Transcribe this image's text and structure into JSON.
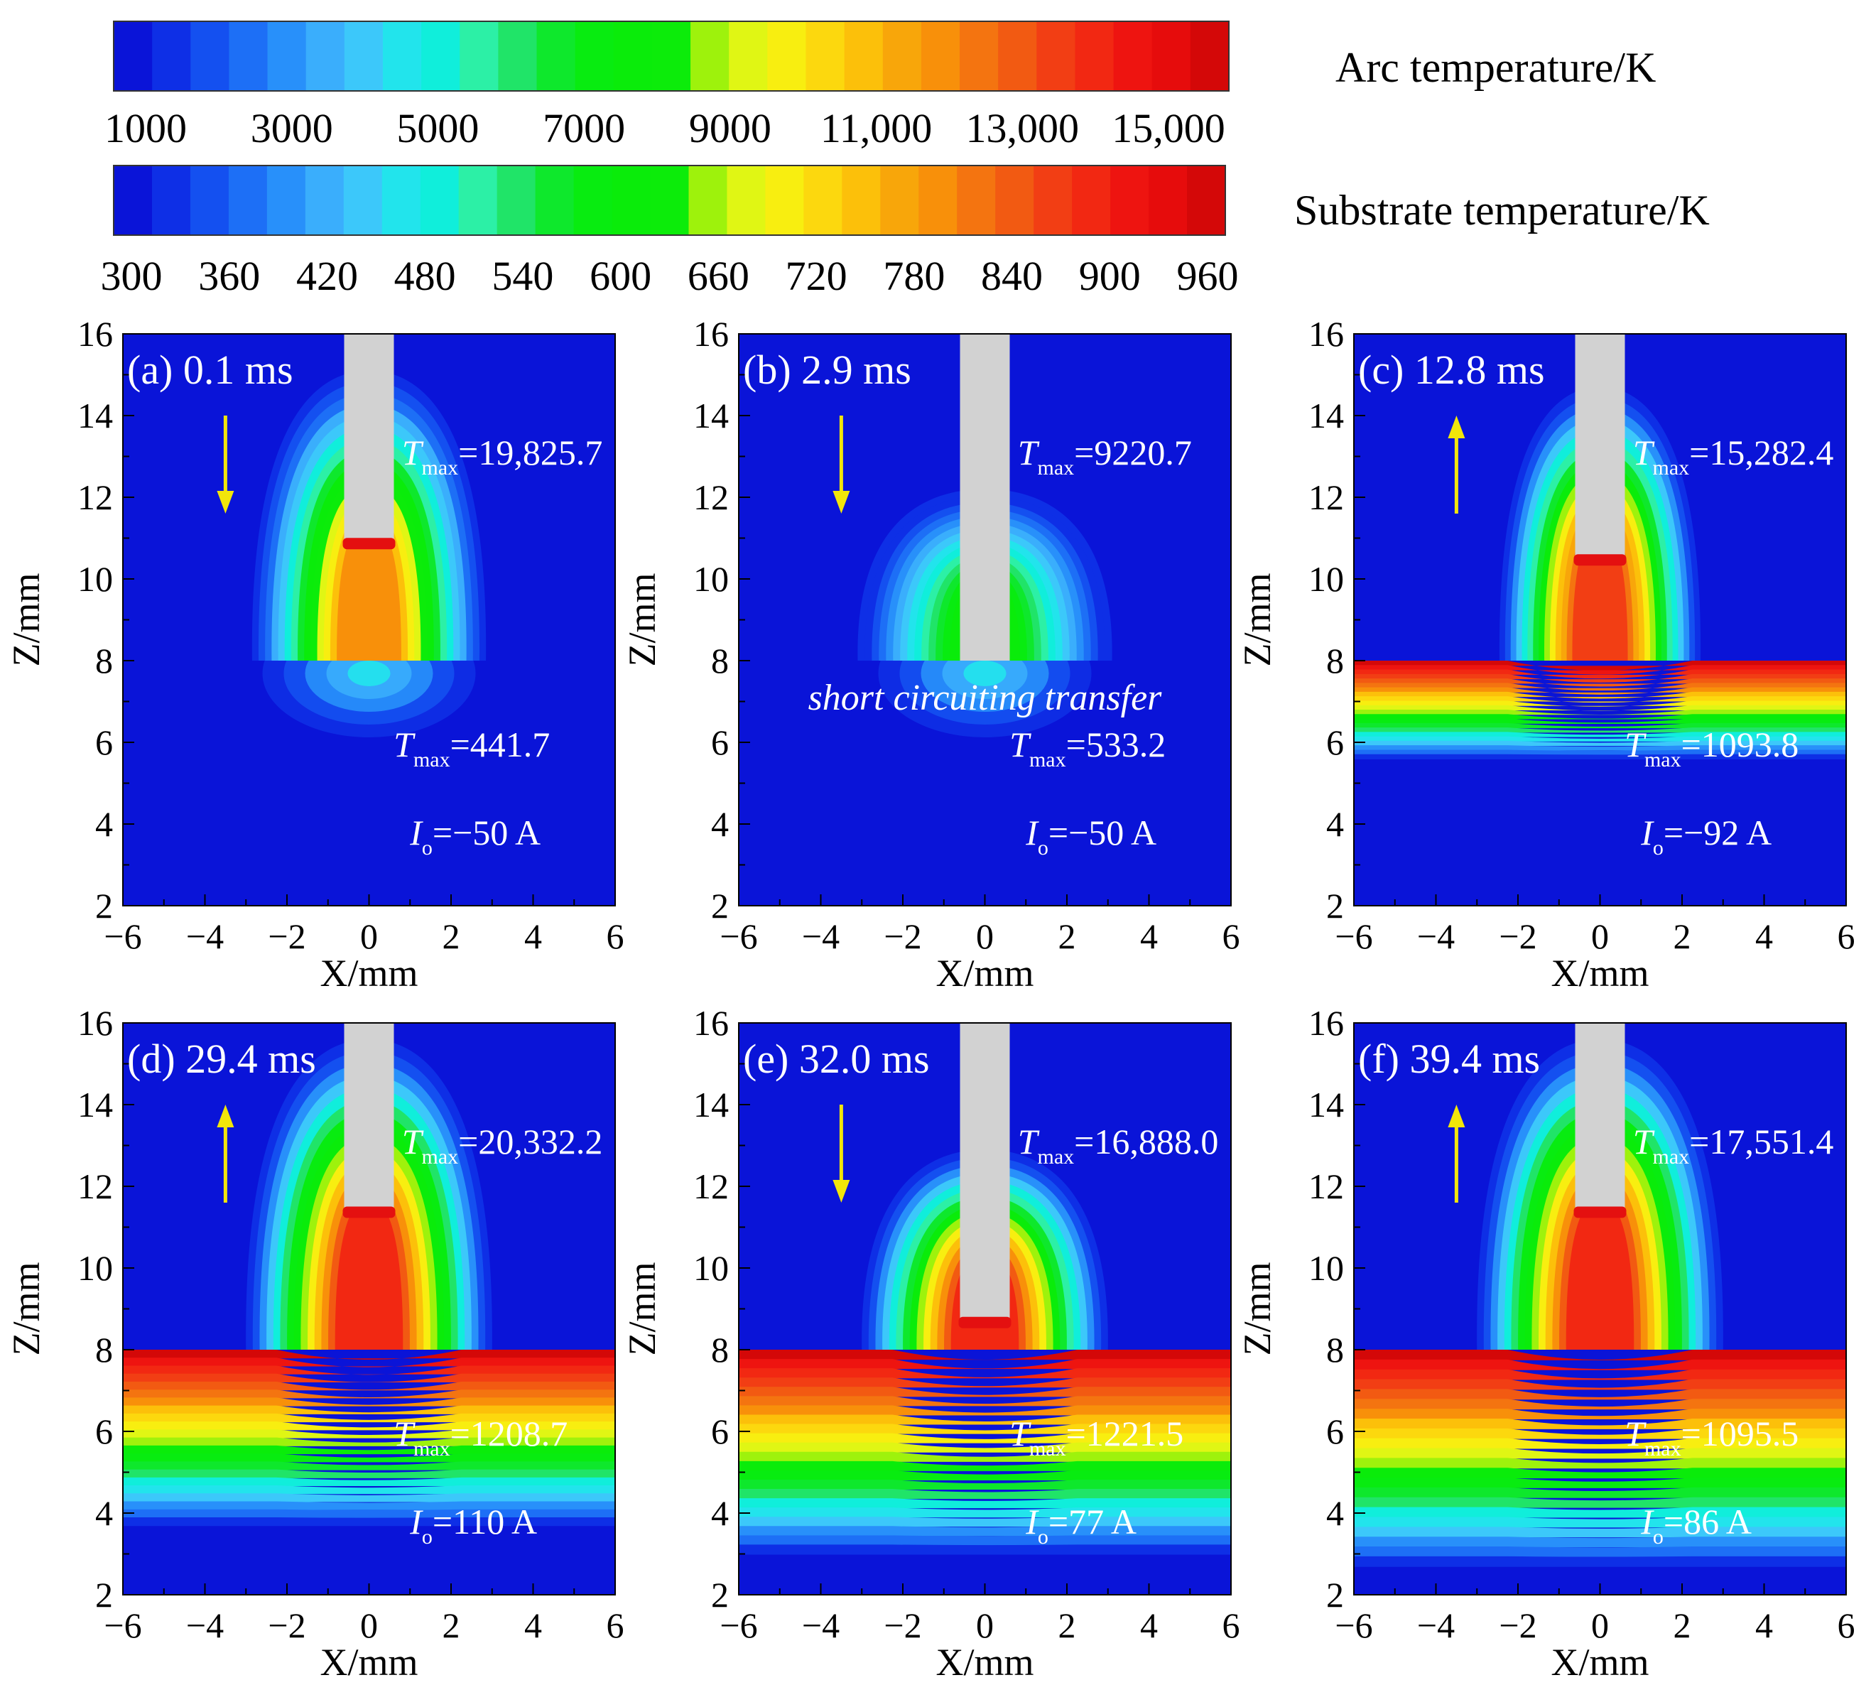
{
  "colorbars": [
    {
      "label": "Arc temperature/K",
      "tick_labels": [
        "1000",
        "3000",
        "5000",
        "7000",
        "9000",
        "11,000",
        "13,000",
        "15,000"
      ],
      "range": [
        1000,
        17000
      ],
      "colors": [
        "#0a14d8",
        "#0e2fe6",
        "#1450f0",
        "#1d6ff6",
        "#2890fa",
        "#3aaefc",
        "#3cc8fa",
        "#22e4ec",
        "#10eedb",
        "#2cf0a6",
        "#20e468",
        "#0ee82c",
        "#08ec10",
        "#0aec0a",
        "#0cec0a",
        "#9ef20c",
        "#e0f614",
        "#f8ee10",
        "#fcd80e",
        "#fcc00a",
        "#f8a60a",
        "#f8900a",
        "#f47410",
        "#f25a12",
        "#f23e14",
        "#f22812",
        "#ee1410",
        "#e60c0c",
        "#d40808"
      ]
    },
    {
      "label": "Substrate temperature/K",
      "tick_labels": [
        "300",
        "360",
        "420",
        "480",
        "540",
        "600",
        "660",
        "720",
        "780",
        "840",
        "900",
        "960"
      ],
      "range": [
        300,
        960
      ],
      "colors": [
        "#0a14d8",
        "#0e2fe6",
        "#1450f0",
        "#1d6ff6",
        "#2890fa",
        "#3aaefc",
        "#3cc8fa",
        "#22e4ec",
        "#10eedb",
        "#2cf0a6",
        "#20e468",
        "#0ee82c",
        "#08ec10",
        "#0aec0a",
        "#0cec0a",
        "#9ef20c",
        "#e0f614",
        "#f8ee10",
        "#fcd80e",
        "#fcc00a",
        "#f8a60a",
        "#f8900a",
        "#f47410",
        "#f25a12",
        "#f23e14",
        "#f22812",
        "#ee1410",
        "#e60c0c",
        "#d40808"
      ]
    }
  ],
  "chart_data": [
    {
      "type": "heatmap",
      "panel_label": "(a) 0.1 ms",
      "xlabel": "X/mm",
      "ylabel": "Z/mm",
      "xlim": [
        -6,
        6
      ],
      "ylim": [
        2,
        16
      ],
      "x_ticks": [
        "−6",
        "−4",
        "−2",
        "0",
        "2",
        "4",
        "6"
      ],
      "y_ticks": [
        "2",
        "4",
        "6",
        "8",
        "10",
        "12",
        "14",
        "16"
      ],
      "arc_tmax_value": "=19,825.7",
      "substrate_tmax_value": "=441.7",
      "current_value": "=−50 A",
      "arrow_direction": "down",
      "electrode_tip_z": 10.9,
      "substrate_top_z": 8,
      "arc_peak_level": 0.78,
      "substrate_layer_depth": 0.2,
      "arc_plume_width": 5.7,
      "annotation": ""
    },
    {
      "type": "heatmap",
      "panel_label": "(b) 2.9 ms",
      "xlabel": "X/mm",
      "ylabel": "Z/mm",
      "xlim": [
        -6,
        6
      ],
      "ylim": [
        2,
        16
      ],
      "x_ticks": [
        "−6",
        "−4",
        "−2",
        "0",
        "2",
        "4",
        "6"
      ],
      "y_ticks": [
        "2",
        "4",
        "6",
        "8",
        "10",
        "12",
        "14",
        "16"
      ],
      "arc_tmax_value": "=9220.7",
      "substrate_tmax_value": "=533.2",
      "current_value": "=−50 A",
      "arrow_direction": "down",
      "electrode_tip_z": 8.0,
      "substrate_top_z": 8,
      "arc_peak_level": 0.5,
      "substrate_layer_depth": 0.3,
      "arc_plume_width": 6.2,
      "annotation": "short circuiting transfer"
    },
    {
      "type": "heatmap",
      "panel_label": "(c) 12.8 ms",
      "xlabel": "X/mm",
      "ylabel": "Z/mm",
      "xlim": [
        -6,
        6
      ],
      "ylim": [
        2,
        16
      ],
      "x_ticks": [
        "−6",
        "−4",
        "−2",
        "0",
        "2",
        "4",
        "6"
      ],
      "y_ticks": [
        "2",
        "4",
        "6",
        "8",
        "10",
        "12",
        "14",
        "16"
      ],
      "arc_tmax_value": "=15,282.4",
      "substrate_tmax_value": "=1093.8",
      "current_value": "=−92 A",
      "arrow_direction": "up",
      "electrode_tip_z": 10.5,
      "substrate_top_z": 8,
      "arc_peak_level": 0.92,
      "substrate_layer_depth": 2.4,
      "arc_plume_width": 4.9,
      "annotation": ""
    },
    {
      "type": "heatmap",
      "panel_label": "(d) 29.4 ms",
      "xlabel": "X/mm",
      "ylabel": "Z/mm",
      "xlim": [
        -6,
        6
      ],
      "ylim": [
        2,
        16
      ],
      "x_ticks": [
        "−6",
        "−4",
        "−2",
        "0",
        "2",
        "4",
        "6"
      ],
      "y_ticks": [
        "2",
        "4",
        "6",
        "8",
        "10",
        "12",
        "14",
        "16"
      ],
      "arc_tmax_value": "=20,332.2",
      "substrate_tmax_value": "=1208.7",
      "current_value": "=110 A",
      "arrow_direction": "up",
      "electrode_tip_z": 11.4,
      "substrate_top_z": 8,
      "arc_peak_level": 0.95,
      "substrate_layer_depth": 4.3,
      "arc_plume_width": 6.0,
      "annotation": ""
    },
    {
      "type": "heatmap",
      "panel_label": "(e) 32.0 ms",
      "xlabel": "X/mm",
      "ylabel": "Z/mm",
      "xlim": [
        -6,
        6
      ],
      "ylim": [
        2,
        16
      ],
      "x_ticks": [
        "−6",
        "−4",
        "−2",
        "0",
        "2",
        "4",
        "6"
      ],
      "y_ticks": [
        "2",
        "4",
        "6",
        "8",
        "10",
        "12",
        "14",
        "16"
      ],
      "arc_tmax_value": "=16,888.0",
      "substrate_tmax_value": "=1221.5",
      "current_value": "=77 A",
      "arrow_direction": "down",
      "electrode_tip_z": 8.7,
      "substrate_top_z": 8,
      "arc_peak_level": 0.93,
      "substrate_layer_depth": 5.0,
      "arc_plume_width": 6.0,
      "annotation": ""
    },
    {
      "type": "heatmap",
      "panel_label": "(f) 39.4 ms",
      "xlabel": "X/mm",
      "ylabel": "Z/mm",
      "xlim": [
        -6,
        6
      ],
      "ylim": [
        2,
        16
      ],
      "x_ticks": [
        "−6",
        "−4",
        "−2",
        "0",
        "2",
        "4",
        "6"
      ],
      "y_ticks": [
        "2",
        "4",
        "6",
        "8",
        "10",
        "12",
        "14",
        "16"
      ],
      "arc_tmax_value": "=17,551.4",
      "substrate_tmax_value": "=1095.5",
      "current_value": "=86 A",
      "arrow_direction": "up",
      "electrode_tip_z": 11.4,
      "substrate_top_z": 8,
      "arc_peak_level": 0.95,
      "substrate_layer_depth": 5.3,
      "arc_plume_width": 6.0,
      "annotation": ""
    }
  ]
}
